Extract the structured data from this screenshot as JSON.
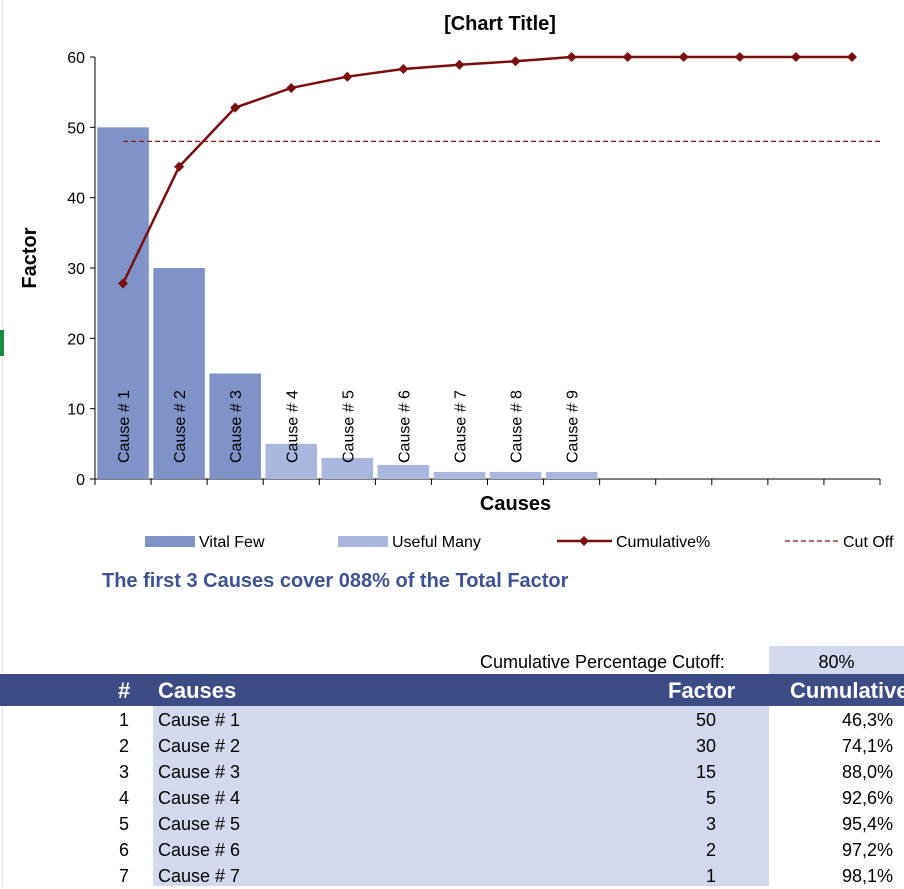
{
  "chart_data": {
    "type": "bar",
    "title": "[Chart Title]",
    "xlabel": "Causes",
    "ylabel": "Factor",
    "ylim": [
      0,
      60
    ],
    "yticks": [
      0,
      10,
      20,
      30,
      40,
      50,
      60
    ],
    "categories": [
      "Cause # 1",
      "Cause # 2",
      "Cause # 3",
      "Cause # 4",
      "Cause # 5",
      "Cause # 6",
      "Cause # 7",
      "Cause # 8",
      "Cause # 9",
      "",
      "",
      "",
      "",
      ""
    ],
    "series": [
      {
        "name": "Vital Few",
        "type": "bar",
        "color": "#7f93c8",
        "values": [
          50,
          30,
          15,
          null,
          null,
          null,
          null,
          null,
          null,
          null,
          null,
          null,
          null,
          null
        ]
      },
      {
        "name": "Useful Many",
        "type": "bar",
        "color": "#a9b6dd",
        "values": [
          null,
          null,
          null,
          5,
          3,
          2,
          1,
          1,
          1,
          null,
          null,
          null,
          null,
          null
        ]
      },
      {
        "name": "Cumulative%",
        "type": "line",
        "color": "#7a0f0f",
        "values": [
          27.8,
          44.4,
          52.8,
          55.6,
          57.2,
          58.3,
          58.9,
          59.4,
          60,
          60,
          60,
          60,
          60,
          60
        ]
      },
      {
        "name": "Cut Off",
        "type": "line-dashed",
        "color": "#8b1a1a",
        "values": [
          48,
          48,
          48,
          48,
          48,
          48,
          48,
          48,
          48,
          48,
          48,
          48,
          48,
          48
        ]
      }
    ],
    "legend_position": "bottom",
    "grid": false
  },
  "summary": "The first 3 Causes cover 088% of the Total Factor",
  "cutoff": {
    "label": "Cumulative Percentage Cutoff:",
    "value": "80%"
  },
  "table": {
    "headers": {
      "num": "#",
      "causes": "Causes",
      "factor": "Factor",
      "cumulative": "Cumulative"
    },
    "rows": [
      {
        "num": "1",
        "cause": "Cause # 1",
        "factor": "50",
        "cumulative": "46,3%"
      },
      {
        "num": "2",
        "cause": "Cause # 2",
        "factor": "30",
        "cumulative": "74,1%"
      },
      {
        "num": "3",
        "cause": "Cause # 3",
        "factor": "15",
        "cumulative": "88,0%"
      },
      {
        "num": "4",
        "cause": "Cause # 4",
        "factor": "5",
        "cumulative": "92,6%"
      },
      {
        "num": "5",
        "cause": "Cause # 5",
        "factor": "3",
        "cumulative": "95,4%"
      },
      {
        "num": "6",
        "cause": "Cause # 6",
        "factor": "2",
        "cumulative": "97,2%"
      },
      {
        "num": "7",
        "cause": "Cause # 7",
        "factor": "1",
        "cumulative": "98,1%"
      }
    ]
  }
}
